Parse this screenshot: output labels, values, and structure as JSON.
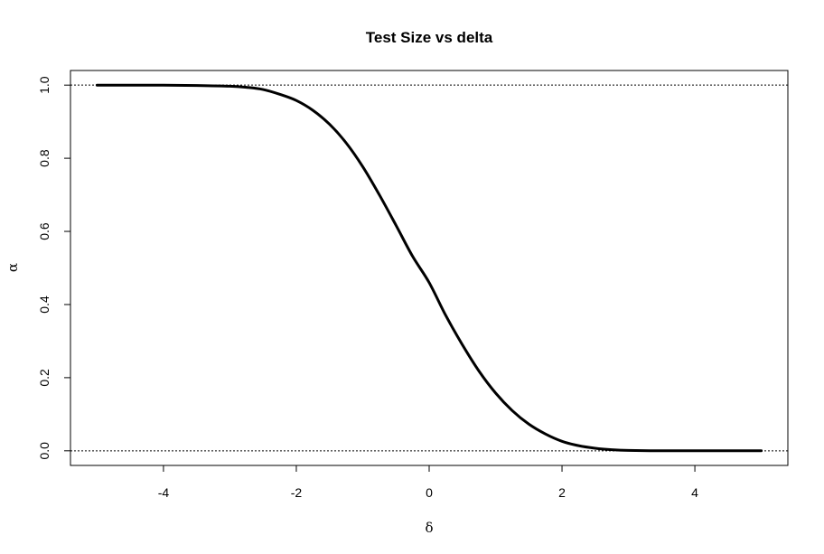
{
  "chart_data": {
    "type": "line",
    "title": "Test Size vs delta",
    "xlabel": "δ",
    "ylabel": "α",
    "xlim": [
      -5.4,
      5.4
    ],
    "ylim": [
      -0.04,
      1.04
    ],
    "xticks": [
      -4,
      -2,
      0,
      2,
      4
    ],
    "xtick_labels": [
      "-4",
      "-2",
      "0",
      "2",
      "4"
    ],
    "yticks": [
      0.0,
      0.2,
      0.4,
      0.6,
      0.8,
      1.0
    ],
    "ytick_labels": [
      "0.0",
      "0.2",
      "0.4",
      "0.6",
      "0.8",
      "1.0"
    ],
    "reference_lines": [
      0.0,
      1.0
    ],
    "grid": false,
    "legend": "none",
    "series": [
      {
        "color": "#000000",
        "x": [
          -5.0,
          -4.5,
          -4.0,
          -3.5,
          -3.0,
          -2.75,
          -2.5,
          -2.25,
          -2.0,
          -1.75,
          -1.5,
          -1.25,
          -1.0,
          -0.75,
          -0.5,
          -0.25,
          0.0,
          0.25,
          0.5,
          0.75,
          1.0,
          1.25,
          1.5,
          1.75,
          2.0,
          2.25,
          2.5,
          2.75,
          3.0,
          3.5,
          4.0,
          4.5,
          5.0
        ],
        "y": [
          1.0,
          1.0,
          1.0,
          0.999,
          0.997,
          0.994,
          0.988,
          0.975,
          0.958,
          0.931,
          0.893,
          0.842,
          0.777,
          0.7,
          0.617,
          0.532,
          0.46,
          0.37,
          0.29,
          0.218,
          0.158,
          0.11,
          0.073,
          0.046,
          0.026,
          0.014,
          0.007,
          0.003,
          0.001,
          0.0,
          0.0,
          0.0,
          0.0
        ]
      }
    ]
  }
}
